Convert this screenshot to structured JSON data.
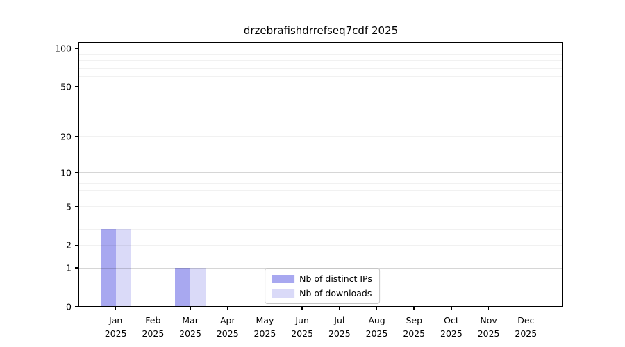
{
  "chart_data": {
    "type": "bar",
    "title": "drzebrafishdrrefseq7cdf 2025",
    "year_label": "2025",
    "categories": [
      "Jan",
      "Feb",
      "Mar",
      "Apr",
      "May",
      "Jun",
      "Jul",
      "Aug",
      "Sep",
      "Oct",
      "Nov",
      "Dec"
    ],
    "series": [
      {
        "name": "Nb of distinct IPs",
        "color": "#a8a8f0",
        "values": [
          3,
          0,
          1,
          0,
          0,
          0,
          0,
          0,
          0,
          0,
          0,
          0
        ]
      },
      {
        "name": "Nb of downloads",
        "color": "#dadaf8",
        "values": [
          3,
          0,
          1,
          0,
          0,
          0,
          0,
          0,
          0,
          0,
          0,
          0
        ]
      }
    ],
    "yscale": "log1p",
    "yticks": [
      0,
      1,
      2,
      5,
      10,
      20,
      50,
      100
    ],
    "ylim": [
      0,
      112
    ],
    "grid": true,
    "grid_minor_at": [
      2,
      3,
      4,
      5,
      6,
      7,
      8,
      9,
      20,
      30,
      40,
      50,
      60,
      70,
      80,
      90
    ],
    "grid_major_at": [
      1,
      10,
      100
    ],
    "legend_position": "lower center",
    "axis_color": "#000000",
    "background_color": "#ffffff"
  }
}
